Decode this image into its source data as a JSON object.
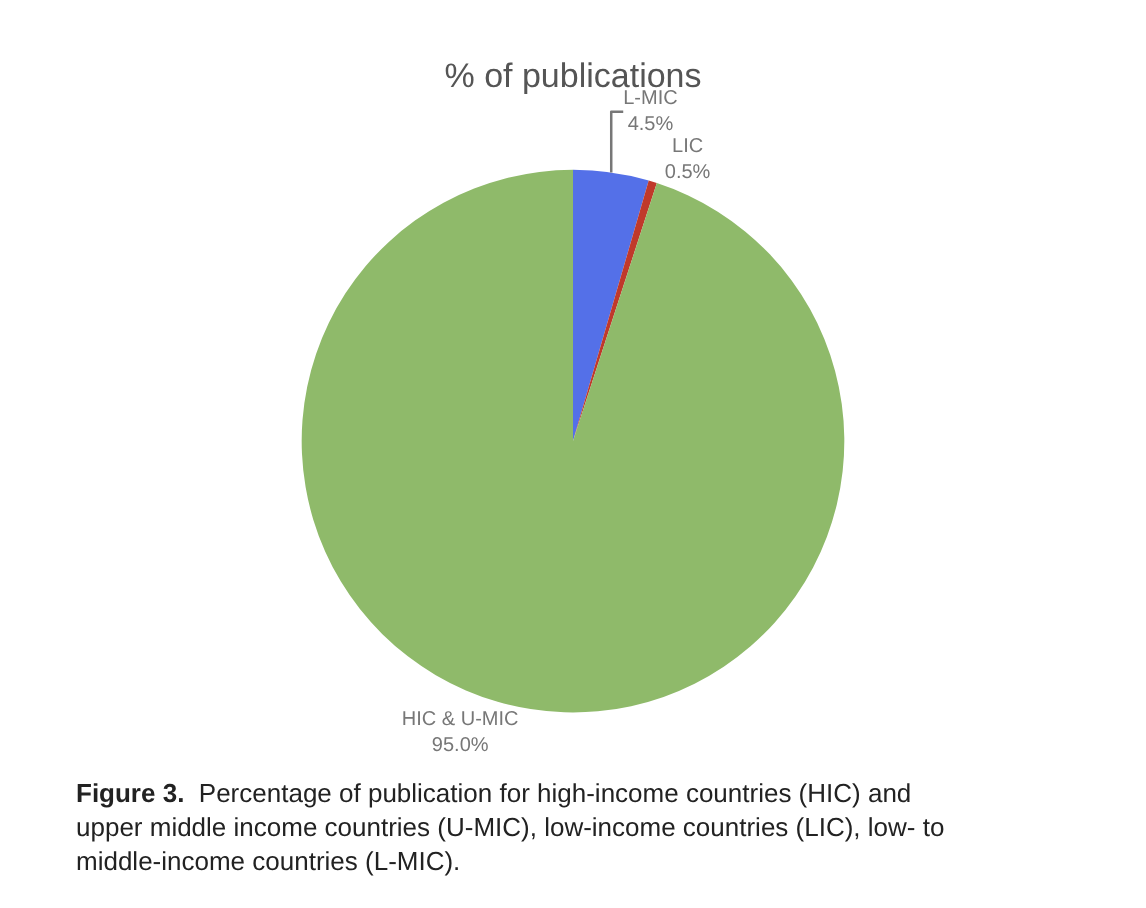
{
  "chart_data": {
    "type": "pie",
    "title": "% of publications",
    "categories": [
      "L-MIC",
      "LIC",
      "HIC & U-MIC"
    ],
    "values": [
      4.5,
      0.5,
      95.0
    ],
    "value_labels": [
      "4.5%",
      "0.5%",
      "95.0%"
    ],
    "colors": [
      "#5470e8",
      "#c0392b",
      "#8fba6a"
    ],
    "legend": false,
    "annotations": [
      "Figure 3.",
      "Percentage of publication for high-income countries (HIC) and upper middle income countries (U-MIC), low-income countries (LIC), low- to middle-income countries (L-MIC)."
    ]
  }
}
